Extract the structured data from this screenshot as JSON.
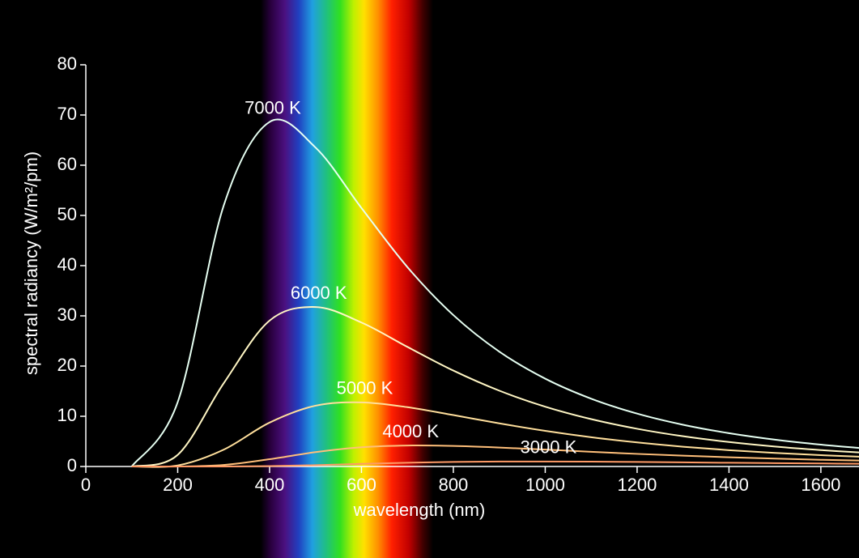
{
  "chart_data": {
    "type": "line",
    "y_label": "spectral radiancy (W/m²/pm)",
    "x_label": "wavelength (nm)",
    "x": [
      100,
      200,
      300,
      400,
      500,
      600,
      700,
      800,
      900,
      1000,
      1100,
      1200,
      1300,
      1400,
      1500,
      1600,
      1700
    ],
    "series": [
      {
        "name": "7000 K",
        "color": "#e6fff2",
        "values": [
          0.0141,
          12.81,
          51.92,
          68.62,
          63.52,
          51.48,
          39.71,
          30.15,
          22.88,
          17.49,
          13.5,
          10.53,
          8.31,
          6.63,
          5.34,
          4.35,
          3.57
        ]
      },
      {
        "name": "6000 K",
        "color": "#fff6c4",
        "values": [
          0.00046,
          2.31,
          16.56,
          29.05,
          31.76,
          28.67,
          23.82,
          19.1,
          15.1,
          11.91,
          9.43,
          7.51,
          6.02,
          4.87,
          3.97,
          3.27,
          2.71
        ]
      },
      {
        "name": "5000 K",
        "color": "#ffdf9c",
        "values": [
          0,
          0.21,
          3.35,
          8.74,
          12.11,
          12.76,
          11.81,
          10.24,
          8.59,
          7.1,
          5.83,
          4.79,
          3.94,
          3.25,
          2.7,
          2.25,
          1.89
        ]
      },
      {
        "name": "4000 K",
        "color": "#ffbf7a",
        "values": [
          0,
          0.0058,
          0.3,
          1.45,
          2.86,
          3.83,
          4.18,
          4.1,
          3.78,
          3.36,
          2.92,
          2.51,
          2.15,
          1.84,
          1.57,
          1.34,
          1.15
        ]
      },
      {
        "name": "3000 K",
        "color": "#ff9a66",
        "values": [
          0,
          0,
          0.0056,
          0.072,
          0.26,
          0.52,
          0.75,
          0.91,
          0.98,
          0.99,
          0.96,
          0.9,
          0.82,
          0.74,
          0.67,
          0.6,
          0.53
        ]
      }
    ],
    "xlim": [
      0,
      1683
    ],
    "ylim": [
      0,
      80
    ],
    "xticks": [
      0,
      200,
      400,
      600,
      800,
      1000,
      1200,
      1400,
      1600
    ],
    "yticks": [
      0,
      10,
      20,
      30,
      40,
      50,
      60,
      70,
      80
    ]
  }
}
